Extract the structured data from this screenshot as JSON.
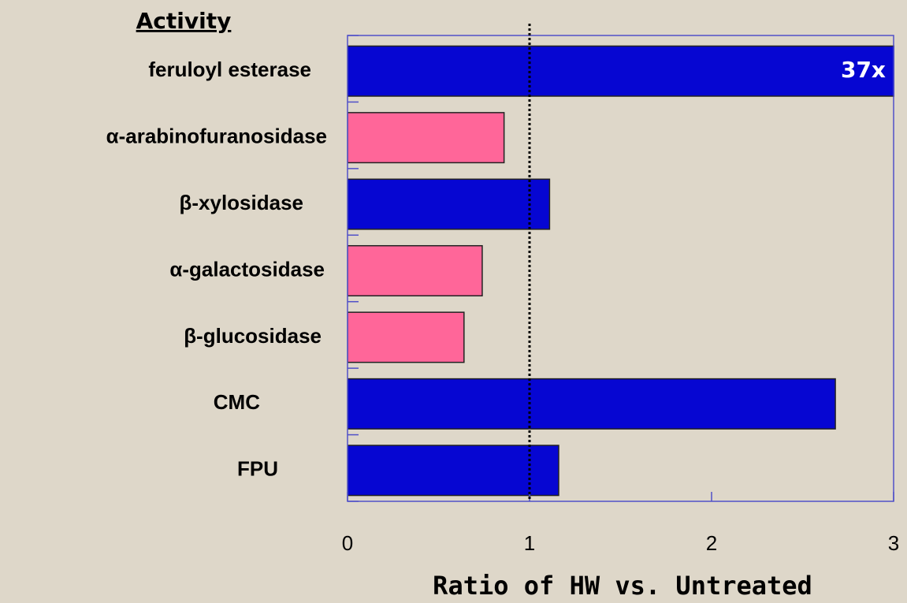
{
  "chart_data": {
    "type": "bar",
    "orientation": "horizontal",
    "category_heading": "Activity",
    "xlabel": "Ratio of HW vs. Untreated",
    "categories": [
      "feruloyl esterase",
      "α-arabinofuranosidase",
      "β-xylosidase",
      "α-galactosidase",
      "β-glucosidase",
      "CMC",
      "FPU"
    ],
    "values": [
      37,
      0.86,
      1.11,
      0.74,
      0.64,
      2.68,
      1.16
    ],
    "value_labels": [
      "37x",
      null,
      null,
      null,
      null,
      null,
      null
    ],
    "colors": [
      "#0606d2",
      "#ff6699",
      "#0606d2",
      "#ff6699",
      "#ff6699",
      "#0606d2",
      "#0606d2"
    ],
    "xlim": [
      0,
      3
    ],
    "xticks": [
      0,
      1,
      2,
      3
    ],
    "reference_line": 1
  }
}
